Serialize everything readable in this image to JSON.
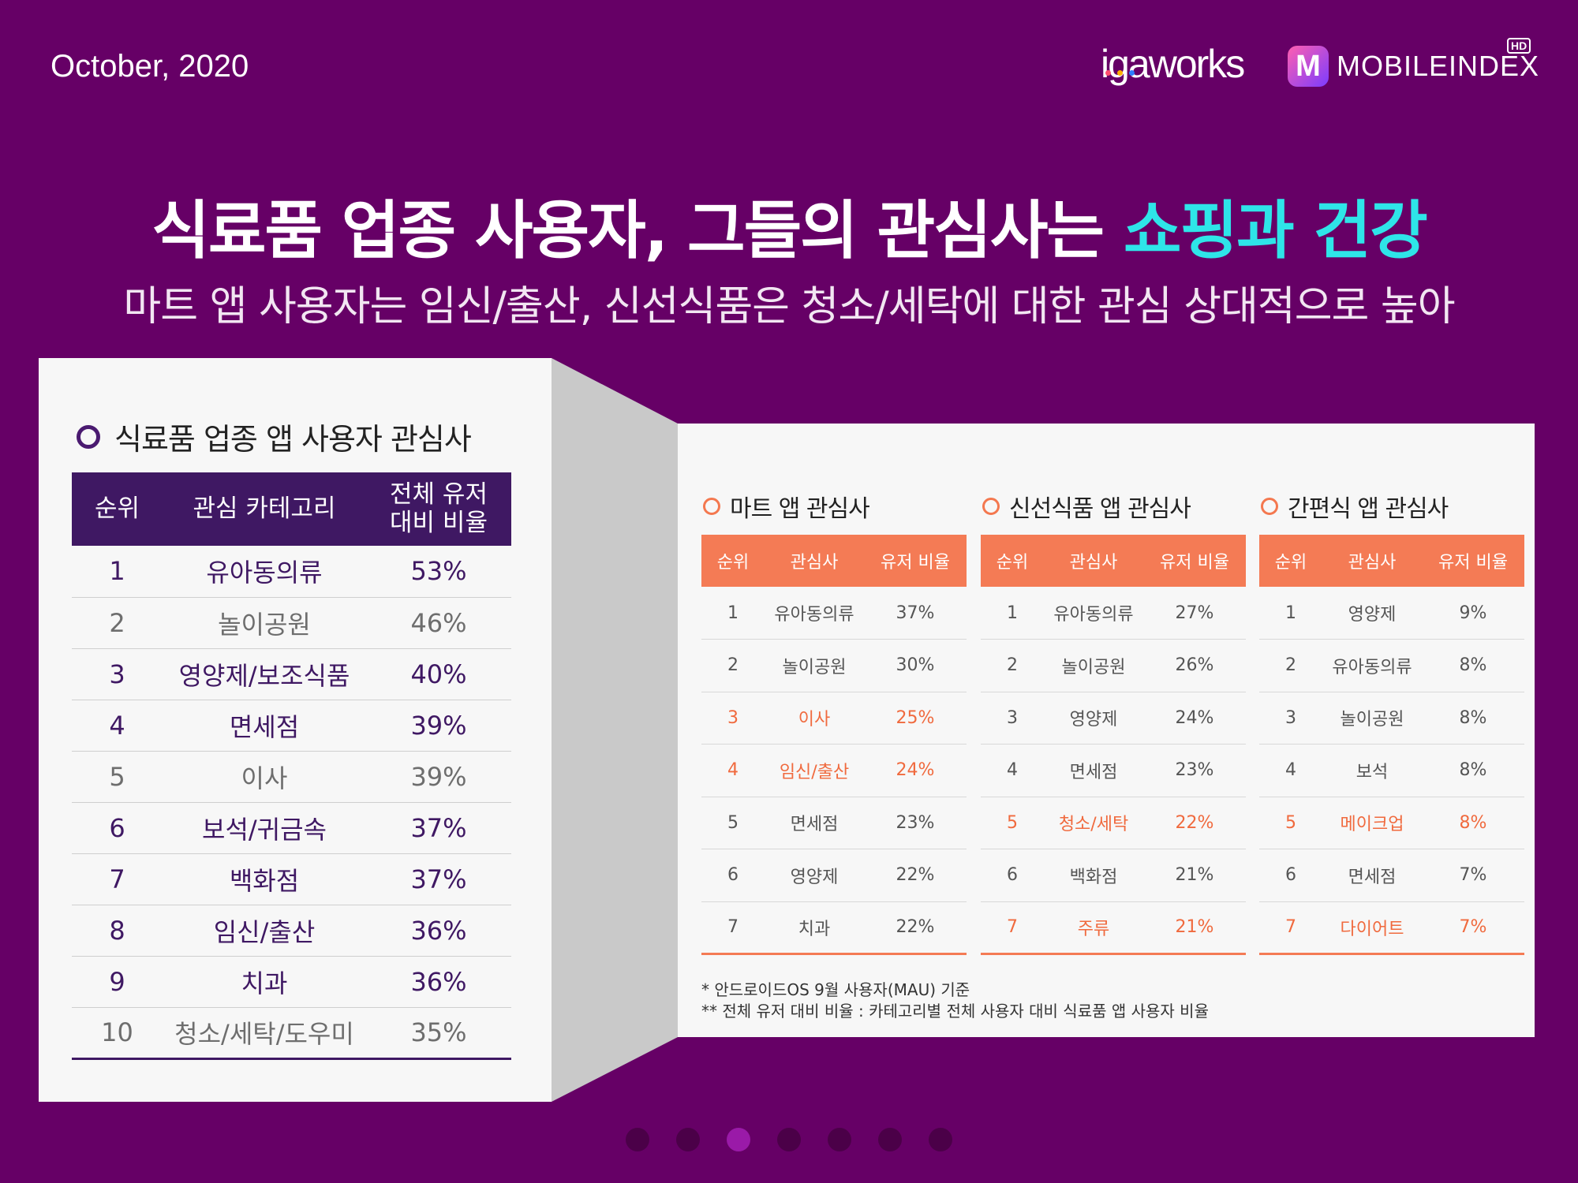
{
  "header": {
    "date": "October, 2020",
    "logo_igaworks": "igaworks",
    "logo_mobileindex": "MOBILEINDEX",
    "logo_hd": "HD"
  },
  "title": {
    "main_prefix": "식료품 업종 사용자, 그들의 관심사는 ",
    "main_highlight": "쇼핑과 건강",
    "subtitle": "마트 앱 사용자는 임신/출산, 신선식품은 청소/세탁에 대한 관심 상대적으로 높아"
  },
  "colors": {
    "background": "#660066",
    "highlight": "#2ee5e8",
    "dark_purple": "#3f1863",
    "orange": "#f47b55"
  },
  "left_panel": {
    "heading": "식료품 업종 앱 사용자 관심사",
    "columns": [
      "순위",
      "관심 카테고리",
      "전체 유저 대비 비율"
    ],
    "rows": [
      {
        "rank": "1",
        "category": "유아동의류",
        "ratio": "53%"
      },
      {
        "rank": "2",
        "category": "놀이공원",
        "ratio": "46%"
      },
      {
        "rank": "3",
        "category": "영양제/보조식품",
        "ratio": "40%"
      },
      {
        "rank": "4",
        "category": "면세점",
        "ratio": "39%"
      },
      {
        "rank": "5",
        "category": "이사",
        "ratio": "39%"
      },
      {
        "rank": "6",
        "category": "보석/귀금속",
        "ratio": "37%"
      },
      {
        "rank": "7",
        "category": "백화점",
        "ratio": "37%"
      },
      {
        "rank": "8",
        "category": "임신/출산",
        "ratio": "36%"
      },
      {
        "rank": "9",
        "category": "치과",
        "ratio": "36%"
      },
      {
        "rank": "10",
        "category": "청소/세탁/도우미",
        "ratio": "35%"
      }
    ]
  },
  "right_panel": {
    "groups": [
      {
        "heading": "마트 앱 관심사",
        "columns": [
          "순위",
          "관심사",
          "유저 비율"
        ],
        "rows": [
          {
            "rank": "1",
            "interest": "유아동의류",
            "ratio": "37%"
          },
          {
            "rank": "2",
            "interest": "놀이공원",
            "ratio": "30%"
          },
          {
            "rank": "3",
            "interest": "이사",
            "ratio": "25%"
          },
          {
            "rank": "4",
            "interest": "임신/출산",
            "ratio": "24%"
          },
          {
            "rank": "5",
            "interest": "면세점",
            "ratio": "23%"
          },
          {
            "rank": "6",
            "interest": "영양제",
            "ratio": "22%"
          },
          {
            "rank": "7",
            "interest": "치과",
            "ratio": "22%"
          }
        ]
      },
      {
        "heading": "신선식품 앱 관심사",
        "columns": [
          "순위",
          "관심사",
          "유저 비율"
        ],
        "rows": [
          {
            "rank": "1",
            "interest": "유아동의류",
            "ratio": "27%"
          },
          {
            "rank": "2",
            "interest": "놀이공원",
            "ratio": "26%"
          },
          {
            "rank": "3",
            "interest": "영양제",
            "ratio": "24%"
          },
          {
            "rank": "4",
            "interest": "면세점",
            "ratio": "23%"
          },
          {
            "rank": "5",
            "interest": "청소/세탁",
            "ratio": "22%"
          },
          {
            "rank": "6",
            "interest": "백화점",
            "ratio": "21%"
          },
          {
            "rank": "7",
            "interest": "주류",
            "ratio": "21%"
          }
        ]
      },
      {
        "heading": "간편식 앱 관심사",
        "columns": [
          "순위",
          "관심사",
          "유저 비율"
        ],
        "rows": [
          {
            "rank": "1",
            "interest": "영양제",
            "ratio": "9%"
          },
          {
            "rank": "2",
            "interest": "유아동의류",
            "ratio": "8%"
          },
          {
            "rank": "3",
            "interest": "놀이공원",
            "ratio": "8%"
          },
          {
            "rank": "4",
            "interest": "보석",
            "ratio": "8%"
          },
          {
            "rank": "5",
            "interest": "메이크업",
            "ratio": "8%"
          },
          {
            "rank": "6",
            "interest": "면세점",
            "ratio": "7%"
          },
          {
            "rank": "7",
            "interest": "다이어트",
            "ratio": "7%"
          }
        ]
      }
    ],
    "note_1": "* 안드로이드OS 9월 사용자(MAU) 기준",
    "note_2": "** 전체 유저 대비 비율 : 카테고리별 전체 사용자 대비 식료품 앱 사용자 비율"
  },
  "pager": {
    "total": 7,
    "active_index": 2
  }
}
